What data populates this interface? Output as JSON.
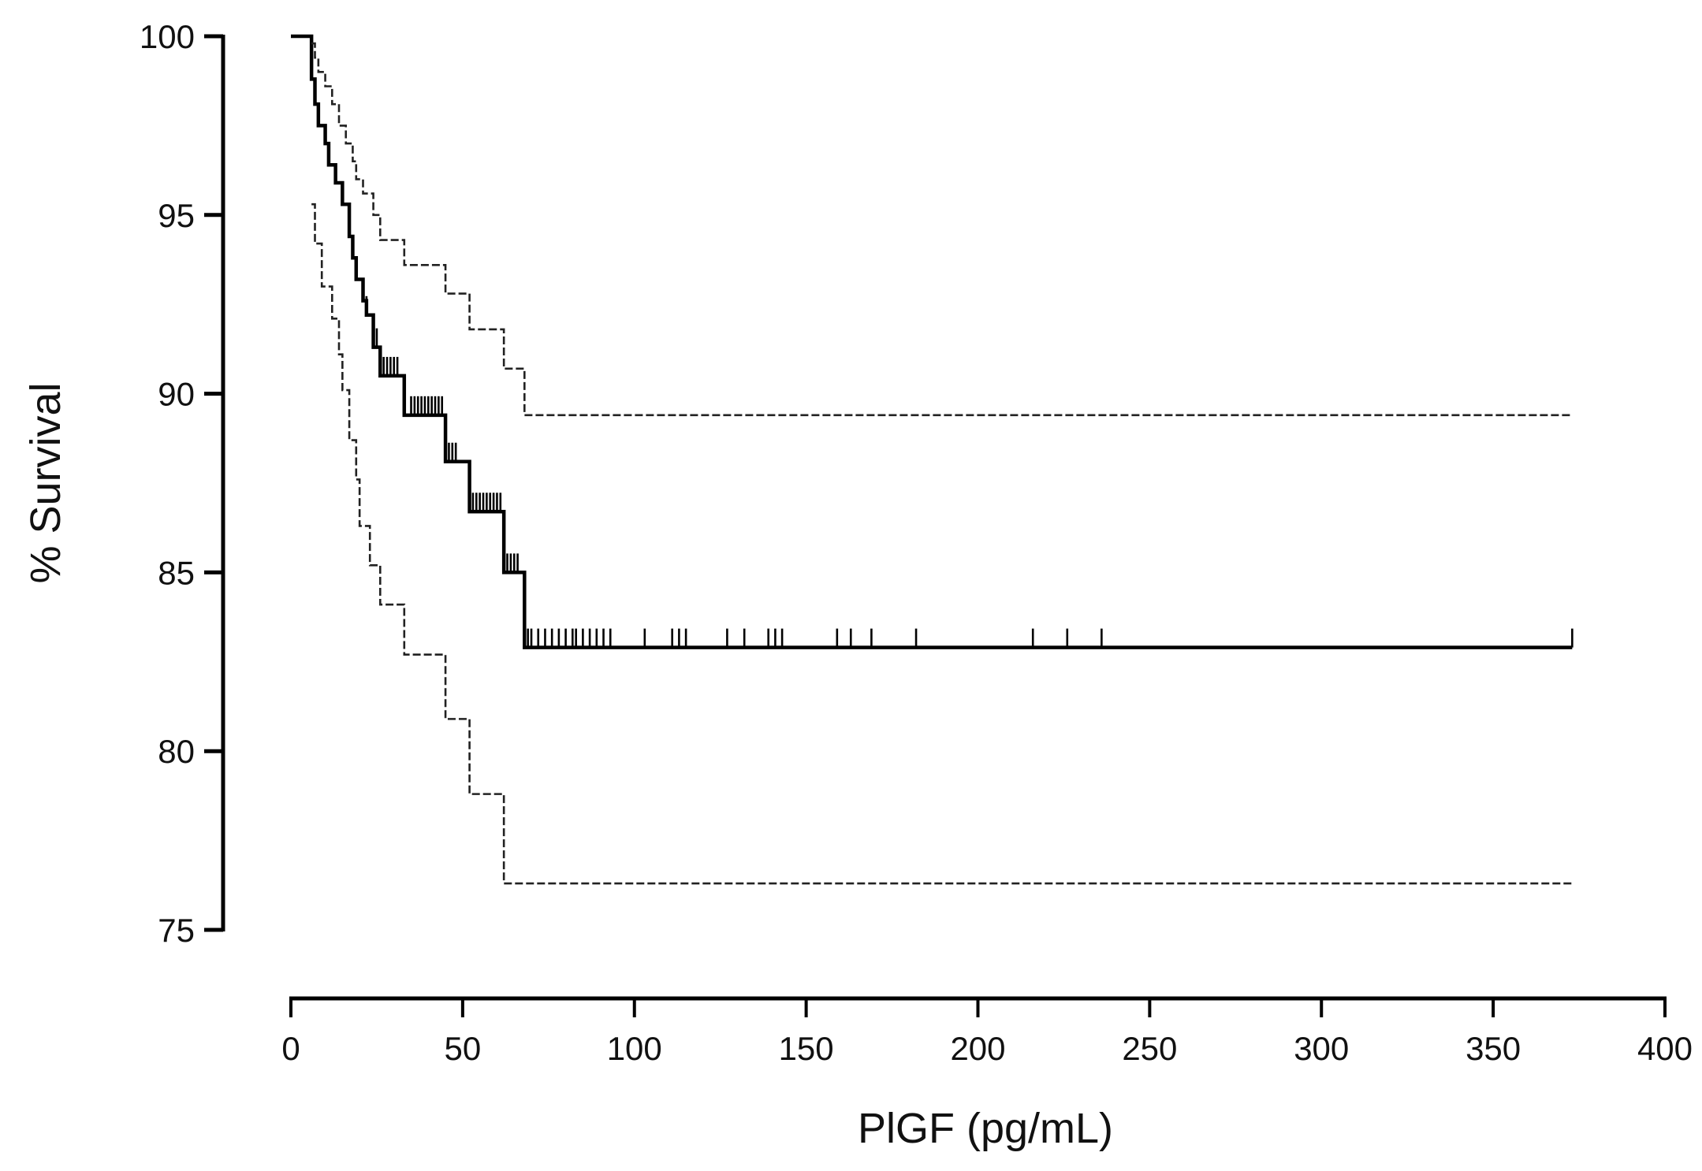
{
  "chart_data": {
    "type": "line",
    "subtype": "kaplan-meier step with 95% confidence bands",
    "title": "",
    "xlabel": "PlGF (pg/mL)",
    "ylabel": "% Survival",
    "xlim": [
      0,
      400
    ],
    "ylim": [
      75,
      100
    ],
    "xticks": [
      0,
      50,
      100,
      150,
      200,
      250,
      300,
      350,
      400
    ],
    "yticks": [
      75,
      80,
      85,
      90,
      95,
      100
    ],
    "grid": false,
    "legend": null,
    "series": [
      {
        "name": "Survival (Kaplan-Meier)",
        "style": "solid-thick",
        "steps": [
          [
            0,
            100
          ],
          [
            6,
            98.8
          ],
          [
            7,
            98.1
          ],
          [
            8,
            97.5
          ],
          [
            10,
            97.0
          ],
          [
            11,
            96.4
          ],
          [
            13,
            95.9
          ],
          [
            15,
            95.3
          ],
          [
            17,
            94.4
          ],
          [
            18,
            93.8
          ],
          [
            19,
            93.2
          ],
          [
            21,
            92.6
          ],
          [
            22,
            92.2
          ],
          [
            24,
            91.3
          ],
          [
            26,
            90.5
          ],
          [
            33,
            89.4
          ],
          [
            45,
            88.1
          ],
          [
            52,
            86.7
          ],
          [
            62,
            85.0
          ],
          [
            68,
            82.9
          ],
          [
            373,
            82.9
          ]
        ],
        "censor_marks_x": [
          17,
          19,
          22,
          25,
          27,
          28,
          29,
          30,
          31,
          35,
          36,
          37,
          38,
          39,
          40,
          41,
          42,
          43,
          44,
          46,
          47,
          48,
          53,
          54,
          55,
          56,
          57,
          58,
          59,
          60,
          61,
          63,
          64,
          65,
          66,
          69,
          70,
          72,
          74,
          76,
          78,
          80,
          82,
          83,
          85,
          87,
          89,
          91,
          93,
          103,
          111,
          113,
          115,
          127,
          132,
          139,
          141,
          143,
          159,
          163,
          169,
          182,
          216,
          226,
          236,
          373
        ]
      },
      {
        "name": "Upper 95% CI",
        "style": "dashed",
        "steps": [
          [
            6,
            99.8
          ],
          [
            7,
            99.4
          ],
          [
            8,
            99.0
          ],
          [
            10,
            98.6
          ],
          [
            12,
            98.1
          ],
          [
            14,
            97.5
          ],
          [
            16,
            97.0
          ],
          [
            18,
            96.5
          ],
          [
            19,
            96.0
          ],
          [
            21,
            95.6
          ],
          [
            24,
            95.0
          ],
          [
            26,
            94.3
          ],
          [
            33,
            93.6
          ],
          [
            45,
            92.8
          ],
          [
            52,
            91.8
          ],
          [
            62,
            90.7
          ],
          [
            68,
            89.4
          ],
          [
            373,
            89.4
          ]
        ]
      },
      {
        "name": "Lower 95% CI",
        "style": "dashed",
        "steps": [
          [
            6,
            95.3
          ],
          [
            7,
            94.2
          ],
          [
            9,
            93.0
          ],
          [
            12,
            92.1
          ],
          [
            14,
            91.1
          ],
          [
            15,
            90.1
          ],
          [
            17,
            88.7
          ],
          [
            19,
            87.6
          ],
          [
            20,
            86.3
          ],
          [
            23,
            85.2
          ],
          [
            26,
            84.1
          ],
          [
            33,
            82.7
          ],
          [
            45,
            80.9
          ],
          [
            52,
            78.8
          ],
          [
            62,
            76.3
          ],
          [
            373,
            76.3
          ]
        ]
      }
    ]
  },
  "axes": {
    "x_title": "PlGF (pg/mL)",
    "y_title": "% Survival",
    "x_tick_labels": [
      "0",
      "50",
      "100",
      "150",
      "200",
      "250",
      "300",
      "350",
      "400"
    ],
    "y_tick_labels": [
      "100",
      "95",
      "90",
      "85",
      "80",
      "75"
    ]
  },
  "colors": {
    "line": "#000000",
    "ci": "#222222",
    "axis": "#000000",
    "background": "#ffffff"
  }
}
